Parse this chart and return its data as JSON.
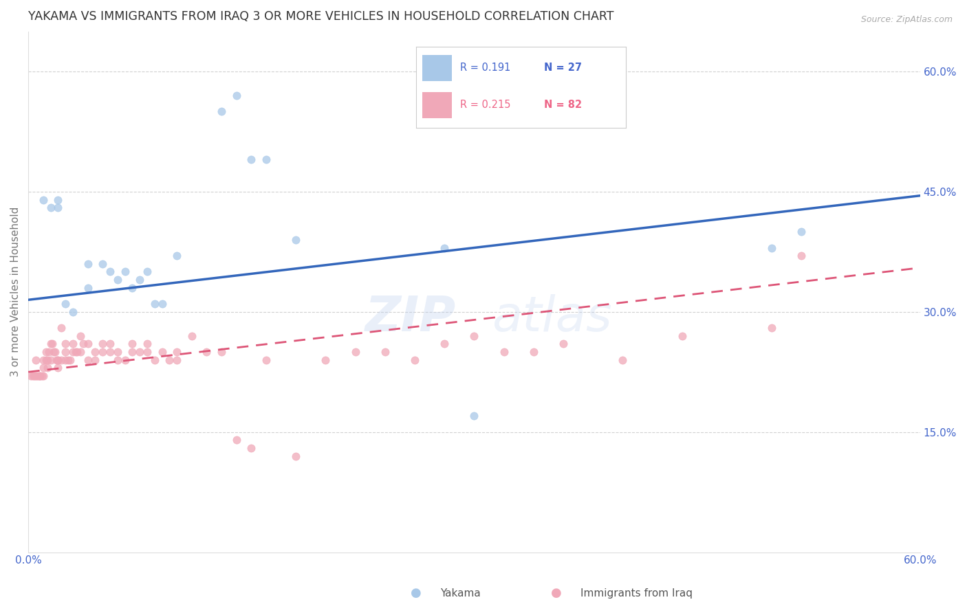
{
  "title": "YAKAMA VS IMMIGRANTS FROM IRAQ 3 OR MORE VEHICLES IN HOUSEHOLD CORRELATION CHART",
  "source": "Source: ZipAtlas.com",
  "ylabel": "3 or more Vehicles in Household",
  "xmin": 0.0,
  "xmax": 0.6,
  "ymin": 0.0,
  "ymax": 0.65,
  "legend_blue_R": "0.191",
  "legend_blue_N": "27",
  "legend_pink_R": "0.215",
  "legend_pink_N": "82",
  "blue_scatter_x": [
    0.01,
    0.015,
    0.02,
    0.02,
    0.025,
    0.03,
    0.04,
    0.04,
    0.05,
    0.055,
    0.06,
    0.065,
    0.07,
    0.075,
    0.08,
    0.085,
    0.09,
    0.1,
    0.13,
    0.14,
    0.15,
    0.16,
    0.18,
    0.28,
    0.3,
    0.5,
    0.52
  ],
  "blue_scatter_y": [
    0.44,
    0.43,
    0.44,
    0.43,
    0.31,
    0.3,
    0.36,
    0.33,
    0.36,
    0.35,
    0.34,
    0.35,
    0.33,
    0.34,
    0.35,
    0.31,
    0.31,
    0.37,
    0.55,
    0.57,
    0.49,
    0.49,
    0.39,
    0.38,
    0.17,
    0.38,
    0.4
  ],
  "blue_line_x": [
    0.0,
    0.6
  ],
  "blue_line_y": [
    0.315,
    0.445
  ],
  "pink_scatter_x": [
    0.002,
    0.003,
    0.004,
    0.005,
    0.005,
    0.006,
    0.007,
    0.008,
    0.008,
    0.009,
    0.01,
    0.01,
    0.01,
    0.012,
    0.012,
    0.013,
    0.013,
    0.014,
    0.015,
    0.015,
    0.016,
    0.017,
    0.018,
    0.019,
    0.02,
    0.02,
    0.02,
    0.022,
    0.022,
    0.025,
    0.025,
    0.025,
    0.027,
    0.028,
    0.03,
    0.03,
    0.032,
    0.033,
    0.035,
    0.035,
    0.037,
    0.04,
    0.04,
    0.045,
    0.045,
    0.05,
    0.05,
    0.055,
    0.055,
    0.06,
    0.06,
    0.065,
    0.07,
    0.07,
    0.075,
    0.08,
    0.08,
    0.085,
    0.09,
    0.095,
    0.1,
    0.1,
    0.11,
    0.12,
    0.13,
    0.14,
    0.15,
    0.16,
    0.18,
    0.2,
    0.22,
    0.24,
    0.26,
    0.28,
    0.3,
    0.32,
    0.34,
    0.36,
    0.4,
    0.44,
    0.5,
    0.52
  ],
  "pink_scatter_y": [
    0.22,
    0.22,
    0.22,
    0.24,
    0.22,
    0.22,
    0.22,
    0.22,
    0.22,
    0.22,
    0.24,
    0.23,
    0.22,
    0.25,
    0.24,
    0.24,
    0.23,
    0.25,
    0.26,
    0.24,
    0.26,
    0.25,
    0.25,
    0.24,
    0.24,
    0.24,
    0.23,
    0.24,
    0.28,
    0.26,
    0.25,
    0.24,
    0.24,
    0.24,
    0.26,
    0.25,
    0.25,
    0.25,
    0.27,
    0.25,
    0.26,
    0.26,
    0.24,
    0.24,
    0.25,
    0.26,
    0.25,
    0.26,
    0.25,
    0.25,
    0.24,
    0.24,
    0.26,
    0.25,
    0.25,
    0.26,
    0.25,
    0.24,
    0.25,
    0.24,
    0.25,
    0.24,
    0.27,
    0.25,
    0.25,
    0.14,
    0.13,
    0.24,
    0.12,
    0.24,
    0.25,
    0.25,
    0.24,
    0.26,
    0.27,
    0.25,
    0.25,
    0.26,
    0.24,
    0.27,
    0.28,
    0.37
  ],
  "pink_line_x": [
    0.0,
    0.6
  ],
  "pink_line_y": [
    0.225,
    0.355
  ],
  "watermark_zip": "ZIP",
  "watermark_atlas": "atlas",
  "blue_color": "#a8c8e8",
  "pink_color": "#f0a8b8",
  "blue_line_color": "#3366bb",
  "pink_line_color": "#dd5577",
  "axis_label_color": "#4466cc",
  "grid_color": "#cccccc",
  "title_color": "#333333",
  "background_color": "#ffffff",
  "marker_size": 65,
  "legend_blue_color": "#4466cc",
  "legend_pink_color": "#ee6688"
}
